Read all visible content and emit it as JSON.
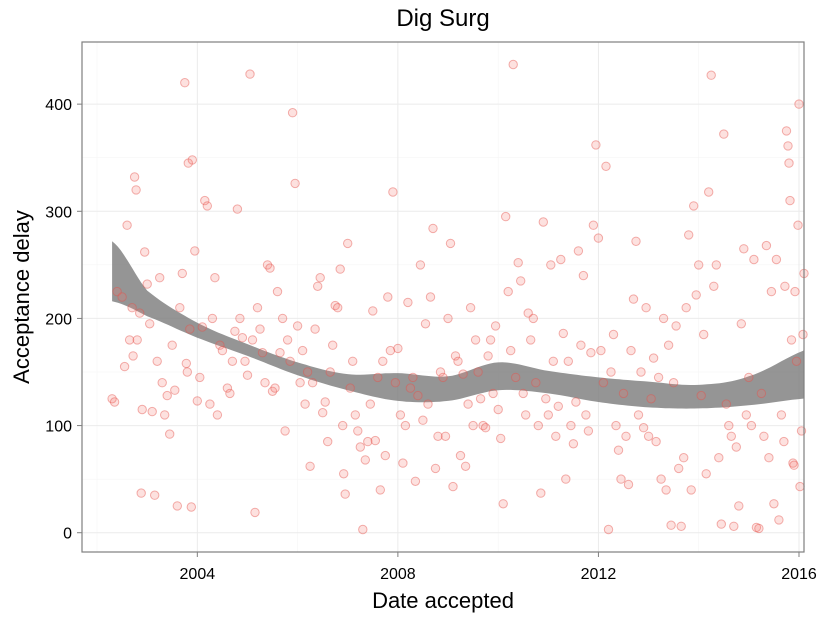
{
  "chart_data": {
    "type": "scatter",
    "title": "Dig Surg",
    "xlabel": "Date accepted",
    "ylabel": "Acceptance delay",
    "xlim": [
      2001.7,
      2016.1
    ],
    "ylim": [
      -18,
      458
    ],
    "x_ticks": [
      2004,
      2008,
      2012,
      2016
    ],
    "y_ticks": [
      0,
      100,
      200,
      300,
      400
    ],
    "grid": true,
    "colors": {
      "points": "#f8766d",
      "band": "#7a7a7a"
    },
    "series": [
      {
        "points": [
          [
            2002.3,
            125
          ],
          [
            2002.35,
            122
          ],
          [
            2002.4,
            225
          ],
          [
            2002.5,
            220
          ],
          [
            2002.55,
            155
          ],
          [
            2002.6,
            287
          ],
          [
            2002.65,
            180
          ],
          [
            2002.7,
            210
          ],
          [
            2002.72,
            165
          ],
          [
            2002.75,
            332
          ],
          [
            2002.78,
            320
          ],
          [
            2002.8,
            180
          ],
          [
            2002.85,
            205
          ],
          [
            2002.88,
            37
          ],
          [
            2002.9,
            115
          ],
          [
            2002.95,
            262
          ],
          [
            2003.0,
            232
          ],
          [
            2003.05,
            195
          ],
          [
            2003.1,
            113
          ],
          [
            2003.15,
            35
          ],
          [
            2003.2,
            160
          ],
          [
            2003.25,
            238
          ],
          [
            2003.3,
            140
          ],
          [
            2003.35,
            110
          ],
          [
            2003.4,
            128
          ],
          [
            2003.45,
            92
          ],
          [
            2003.5,
            175
          ],
          [
            2003.55,
            133
          ],
          [
            2003.6,
            25
          ],
          [
            2003.65,
            210
          ],
          [
            2003.7,
            242
          ],
          [
            2003.75,
            420
          ],
          [
            2003.78,
            158
          ],
          [
            2003.8,
            150
          ],
          [
            2003.82,
            345
          ],
          [
            2003.85,
            190
          ],
          [
            2003.88,
            24
          ],
          [
            2003.9,
            348
          ],
          [
            2003.95,
            263
          ],
          [
            2004.0,
            123
          ],
          [
            2004.05,
            145
          ],
          [
            2004.1,
            192
          ],
          [
            2004.15,
            310
          ],
          [
            2004.2,
            305
          ],
          [
            2004.25,
            120
          ],
          [
            2004.3,
            200
          ],
          [
            2004.35,
            238
          ],
          [
            2004.4,
            110
          ],
          [
            2004.45,
            175
          ],
          [
            2004.5,
            170
          ],
          [
            2004.6,
            135
          ],
          [
            2004.65,
            130
          ],
          [
            2004.7,
            160
          ],
          [
            2004.75,
            188
          ],
          [
            2004.8,
            302
          ],
          [
            2004.85,
            200
          ],
          [
            2004.9,
            182
          ],
          [
            2004.95,
            160
          ],
          [
            2005.0,
            147
          ],
          [
            2005.05,
            428
          ],
          [
            2005.1,
            180
          ],
          [
            2005.15,
            19
          ],
          [
            2005.2,
            210
          ],
          [
            2005.25,
            190
          ],
          [
            2005.3,
            168
          ],
          [
            2005.35,
            140
          ],
          [
            2005.4,
            250
          ],
          [
            2005.45,
            247
          ],
          [
            2005.5,
            132
          ],
          [
            2005.55,
            135
          ],
          [
            2005.6,
            225
          ],
          [
            2005.65,
            168
          ],
          [
            2005.7,
            200
          ],
          [
            2005.75,
            95
          ],
          [
            2005.8,
            180
          ],
          [
            2005.85,
            160
          ],
          [
            2005.9,
            392
          ],
          [
            2005.95,
            326
          ],
          [
            2006.0,
            193
          ],
          [
            2006.05,
            140
          ],
          [
            2006.1,
            170
          ],
          [
            2006.15,
            120
          ],
          [
            2006.2,
            150
          ],
          [
            2006.25,
            62
          ],
          [
            2006.3,
            140
          ],
          [
            2006.35,
            190
          ],
          [
            2006.4,
            230
          ],
          [
            2006.45,
            238
          ],
          [
            2006.5,
            112
          ],
          [
            2006.55,
            122
          ],
          [
            2006.6,
            85
          ],
          [
            2006.65,
            150
          ],
          [
            2006.7,
            175
          ],
          [
            2006.75,
            212
          ],
          [
            2006.8,
            210
          ],
          [
            2006.85,
            246
          ],
          [
            2006.9,
            100
          ],
          [
            2006.92,
            55
          ],
          [
            2006.95,
            36
          ],
          [
            2007.0,
            270
          ],
          [
            2007.05,
            135
          ],
          [
            2007.1,
            160
          ],
          [
            2007.15,
            110
          ],
          [
            2007.2,
            95
          ],
          [
            2007.25,
            80
          ],
          [
            2007.3,
            3
          ],
          [
            2007.35,
            68
          ],
          [
            2007.4,
            85
          ],
          [
            2007.45,
            120
          ],
          [
            2007.5,
            207
          ],
          [
            2007.55,
            86
          ],
          [
            2007.6,
            145
          ],
          [
            2007.65,
            40
          ],
          [
            2007.7,
            160
          ],
          [
            2007.75,
            72
          ],
          [
            2007.8,
            220
          ],
          [
            2007.85,
            170
          ],
          [
            2007.9,
            318
          ],
          [
            2007.95,
            140
          ],
          [
            2008.0,
            172
          ],
          [
            2008.05,
            110
          ],
          [
            2008.1,
            65
          ],
          [
            2008.15,
            100
          ],
          [
            2008.2,
            215
          ],
          [
            2008.25,
            135
          ],
          [
            2008.3,
            145
          ],
          [
            2008.35,
            48
          ],
          [
            2008.4,
            128
          ],
          [
            2008.45,
            250
          ],
          [
            2008.5,
            105
          ],
          [
            2008.55,
            195
          ],
          [
            2008.6,
            120
          ],
          [
            2008.65,
            220
          ],
          [
            2008.7,
            284
          ],
          [
            2008.75,
            60
          ],
          [
            2008.8,
            90
          ],
          [
            2008.85,
            150
          ],
          [
            2008.9,
            145
          ],
          [
            2008.95,
            90
          ],
          [
            2009.0,
            200
          ],
          [
            2009.05,
            270
          ],
          [
            2009.1,
            43
          ],
          [
            2009.15,
            165
          ],
          [
            2009.2,
            160
          ],
          [
            2009.25,
            72
          ],
          [
            2009.3,
            148
          ],
          [
            2009.35,
            62
          ],
          [
            2009.4,
            120
          ],
          [
            2009.45,
            210
          ],
          [
            2009.5,
            100
          ],
          [
            2009.55,
            180
          ],
          [
            2009.6,
            150
          ],
          [
            2009.65,
            125
          ],
          [
            2009.7,
            100
          ],
          [
            2009.75,
            98
          ],
          [
            2009.8,
            165
          ],
          [
            2009.85,
            180
          ],
          [
            2009.9,
            130
          ],
          [
            2009.95,
            193
          ],
          [
            2010.0,
            115
          ],
          [
            2010.05,
            88
          ],
          [
            2010.1,
            27
          ],
          [
            2010.15,
            295
          ],
          [
            2010.2,
            225
          ],
          [
            2010.25,
            170
          ],
          [
            2010.3,
            437
          ],
          [
            2010.35,
            145
          ],
          [
            2010.4,
            252
          ],
          [
            2010.45,
            235
          ],
          [
            2010.5,
            130
          ],
          [
            2010.55,
            110
          ],
          [
            2010.6,
            205
          ],
          [
            2010.65,
            180
          ],
          [
            2010.7,
            200
          ],
          [
            2010.75,
            140
          ],
          [
            2010.8,
            100
          ],
          [
            2010.85,
            37
          ],
          [
            2010.9,
            290
          ],
          [
            2010.95,
            125
          ],
          [
            2011.0,
            110
          ],
          [
            2011.05,
            250
          ],
          [
            2011.1,
            160
          ],
          [
            2011.15,
            90
          ],
          [
            2011.2,
            118
          ],
          [
            2011.25,
            255
          ],
          [
            2011.3,
            186
          ],
          [
            2011.35,
            50
          ],
          [
            2011.4,
            160
          ],
          [
            2011.45,
            100
          ],
          [
            2011.5,
            83
          ],
          [
            2011.55,
            122
          ],
          [
            2011.6,
            263
          ],
          [
            2011.65,
            175
          ],
          [
            2011.7,
            240
          ],
          [
            2011.75,
            110
          ],
          [
            2011.8,
            95
          ],
          [
            2011.85,
            168
          ],
          [
            2011.9,
            287
          ],
          [
            2011.95,
            362
          ],
          [
            2012.0,
            275
          ],
          [
            2012.05,
            170
          ],
          [
            2012.1,
            140
          ],
          [
            2012.15,
            342
          ],
          [
            2012.2,
            3
          ],
          [
            2012.25,
            150
          ],
          [
            2012.3,
            185
          ],
          [
            2012.35,
            100
          ],
          [
            2012.4,
            77
          ],
          [
            2012.45,
            50
          ],
          [
            2012.5,
            130
          ],
          [
            2012.55,
            90
          ],
          [
            2012.6,
            45
          ],
          [
            2012.65,
            170
          ],
          [
            2012.7,
            218
          ],
          [
            2012.75,
            272
          ],
          [
            2012.8,
            110
          ],
          [
            2012.85,
            150
          ],
          [
            2012.9,
            98
          ],
          [
            2012.95,
            210
          ],
          [
            2013.0,
            90
          ],
          [
            2013.05,
            125
          ],
          [
            2013.1,
            163
          ],
          [
            2013.15,
            85
          ],
          [
            2013.2,
            145
          ],
          [
            2013.25,
            50
          ],
          [
            2013.3,
            200
          ],
          [
            2013.35,
            40
          ],
          [
            2013.4,
            175
          ],
          [
            2013.45,
            7
          ],
          [
            2013.5,
            140
          ],
          [
            2013.55,
            193
          ],
          [
            2013.6,
            60
          ],
          [
            2013.65,
            6
          ],
          [
            2013.7,
            70
          ],
          [
            2013.75,
            210
          ],
          [
            2013.8,
            278
          ],
          [
            2013.85,
            40
          ],
          [
            2013.9,
            305
          ],
          [
            2013.95,
            222
          ],
          [
            2014.0,
            250
          ],
          [
            2014.05,
            128
          ],
          [
            2014.1,
            185
          ],
          [
            2014.15,
            55
          ],
          [
            2014.2,
            318
          ],
          [
            2014.25,
            427
          ],
          [
            2014.3,
            230
          ],
          [
            2014.35,
            250
          ],
          [
            2014.4,
            70
          ],
          [
            2014.45,
            8
          ],
          [
            2014.5,
            372
          ],
          [
            2014.55,
            120
          ],
          [
            2014.6,
            100
          ],
          [
            2014.65,
            90
          ],
          [
            2014.7,
            6
          ],
          [
            2014.75,
            80
          ],
          [
            2014.8,
            25
          ],
          [
            2014.85,
            195
          ],
          [
            2014.9,
            265
          ],
          [
            2014.95,
            110
          ],
          [
            2015.0,
            145
          ],
          [
            2015.05,
            100
          ],
          [
            2015.1,
            255
          ],
          [
            2015.15,
            5
          ],
          [
            2015.2,
            4
          ],
          [
            2015.25,
            130
          ],
          [
            2015.3,
            90
          ],
          [
            2015.35,
            268
          ],
          [
            2015.4,
            70
          ],
          [
            2015.45,
            225
          ],
          [
            2015.5,
            27
          ],
          [
            2015.55,
            255
          ],
          [
            2015.6,
            12
          ],
          [
            2015.65,
            110
          ],
          [
            2015.7,
            85
          ],
          [
            2015.72,
            230
          ],
          [
            2015.75,
            375
          ],
          [
            2015.78,
            361
          ],
          [
            2015.8,
            345
          ],
          [
            2015.82,
            310
          ],
          [
            2015.85,
            180
          ],
          [
            2015.88,
            65
          ],
          [
            2015.9,
            63
          ],
          [
            2015.92,
            225
          ],
          [
            2015.95,
            160
          ],
          [
            2015.98,
            287
          ],
          [
            2016.0,
            400
          ],
          [
            2016.02,
            43
          ],
          [
            2016.05,
            95
          ],
          [
            2016.08,
            185
          ],
          [
            2016.1,
            242
          ]
        ]
      }
    ],
    "smooth_band": {
      "x": [
        2002.3,
        2003.0,
        2004.0,
        2005.0,
        2006.0,
        2007.0,
        2008.0,
        2009.0,
        2010.0,
        2011.0,
        2012.0,
        2013.0,
        2014.0,
        2015.0,
        2016.3
      ],
      "lower": [
        216,
        202,
        182,
        165,
        147,
        133,
        123,
        123,
        133,
        130,
        122,
        117,
        116,
        119,
        126
      ],
      "upper": [
        272,
        226,
        196,
        176,
        159,
        148,
        149,
        146,
        159,
        151,
        145,
        141,
        138,
        146,
        173
      ]
    }
  }
}
